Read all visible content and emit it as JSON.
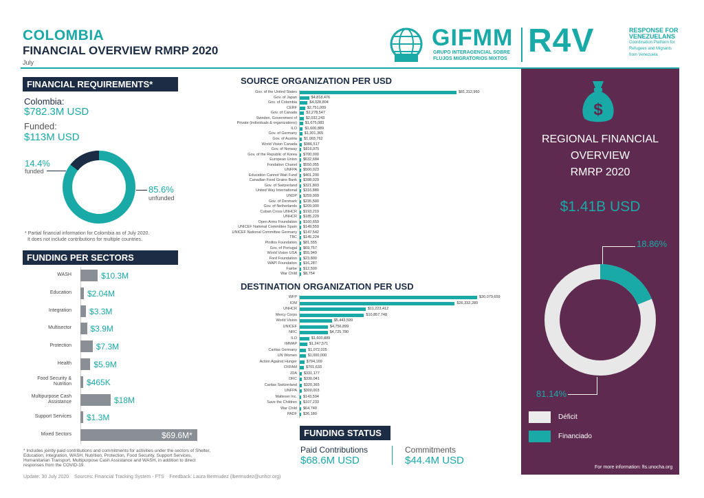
{
  "header": {
    "title": "COLOMBIA",
    "subtitle": "FINANCIAL OVERVIEW RMRP 2020",
    "month": "July",
    "gifmm_logo": "GIFMM",
    "gifmm_sub1": "GRUPO INTERAGENCIAL SOBRE",
    "gifmm_sub2": "FLUJOS MIGRATORIOS MIXTOS",
    "r4v_logo": "R4V",
    "r4v_line1": "RESPONSE FOR",
    "r4v_line2": "VENEZUELANS",
    "r4v_line3": "Coordination Platform for",
    "r4v_line4": "Refugees and Migrants",
    "r4v_line5": "from Venezuela"
  },
  "financial": {
    "heading": "FINANCIAL REQUIREMENTS*",
    "country_label": "Colombia:",
    "requirement": "$782.3M USD",
    "funded_label": "Funded:",
    "funded_value": "$113M USD",
    "funded_pct": "14.4%",
    "funded_word": "funded",
    "unfunded_pct": "85.6%",
    "unfunded_word": "unfunded",
    "funded_fraction": 0.144,
    "note1": "* Partial financial information for Colombia as of July 2020.",
    "note2": "It does not include contributions for multiple countries."
  },
  "sectors": {
    "heading": "FUNDING PER SECTORS",
    "items": [
      {
        "label": "WASH",
        "value": "$10.3M",
        "amount": 10.3
      },
      {
        "label": "Education",
        "value": "$2.04M",
        "amount": 2.04
      },
      {
        "label": "Integration",
        "value": "$3.3M",
        "amount": 3.3
      },
      {
        "label": "Multisector",
        "value": "$3.9M",
        "amount": 3.9
      },
      {
        "label": "Protection",
        "value": "$7.3M",
        "amount": 7.3
      },
      {
        "label": "Health",
        "value": "$5.9M",
        "amount": 5.9
      },
      {
        "label": "Food Security & Nutrition",
        "value": "$465K",
        "amount": 0.465
      },
      {
        "label": "Multipurpose Cash Assistance",
        "value": "$18M",
        "amount": 18
      },
      {
        "label": "Support Services",
        "value": "$1.3M",
        "amount": 1.3
      },
      {
        "label": "Mixed Sectors",
        "value": "$69.6M*",
        "amount": 69.6
      }
    ],
    "note": "* Includes jointly paid contributions and commitments for activities under the sectors of Shelter, Education, Integration, WASH, Nutrition, Protection, Food Security, Support Services, Humanitarian Transport, Multipurpose Cash Assistance and WASH, in addition to direct responses from the COVID-19."
  },
  "source": {
    "heading": "SOURCE ORGANIZATION PER USD",
    "items": [
      {
        "label": "Gov. of the United States",
        "value": "$81,312,960",
        "amount": 81.3
      },
      {
        "label": "Gov. of Japan",
        "value": "$4,818,476",
        "amount": 4.82
      },
      {
        "label": "Gov. of Colombia",
        "value": "$4,028,804",
        "amount": 4.03
      },
      {
        "label": "CERF",
        "value": "$2,751,009",
        "amount": 2.75
      },
      {
        "label": "Gov. of Canada",
        "value": "$2,278,547",
        "amount": 2.28
      },
      {
        "label": "Sweden, Government of",
        "value": "$2,032,243",
        "amount": 2.03
      },
      {
        "label": "Private (individuals & organizations)",
        "value": "$1,675,083",
        "amount": 1.68
      },
      {
        "label": "ILO",
        "value": "$1,600,889",
        "amount": 1.6
      },
      {
        "label": "Gov. of Germany",
        "value": "$1,301,365",
        "amount": 1.3
      },
      {
        "label": "Gov. of Austria",
        "value": "$1,093,762",
        "amount": 1.09
      },
      {
        "label": "World Vision Canada",
        "value": "$986,517",
        "amount": 0.99
      },
      {
        "label": "Gov. of Norway",
        "value": "$816,975",
        "amount": 0.82
      },
      {
        "label": "Gov. of the Republic of Korea",
        "value": "$700,000",
        "amount": 0.7
      },
      {
        "label": "European Union",
        "value": "$632,684",
        "amount": 0.63
      },
      {
        "label": "Fondation Chanel",
        "value": "$550,055",
        "amount": 0.55
      },
      {
        "label": "UNFPA",
        "value": "$500,023",
        "amount": 0.5
      },
      {
        "label": "Education Cannot Wait Fund",
        "value": "$401,200",
        "amount": 0.4
      },
      {
        "label": "Canadian Food Grains Bank",
        "value": "$398,029",
        "amount": 0.4
      },
      {
        "label": "Gov. of Switzerland",
        "value": "$321,803",
        "amount": 0.32
      },
      {
        "label": "United Way International",
        "value": "$316,880",
        "amount": 0.32
      },
      {
        "label": "UNDP",
        "value": "$259,009",
        "amount": 0.26
      },
      {
        "label": "Gov. of Denmark",
        "value": "$235,500",
        "amount": 0.24
      },
      {
        "label": "Gov. of Netherlands",
        "value": "$209,000",
        "amount": 0.21
      },
      {
        "label": "Cuban Cross UNHCR",
        "value": "$193,219",
        "amount": 0.19
      },
      {
        "label": "UNHCR",
        "value": "$185,229",
        "amount": 0.19
      },
      {
        "label": "Open Arms Foundation",
        "value": "$160,659",
        "amount": 0.16
      },
      {
        "label": "UNICEF National Committee Spain",
        "value": "$149,559",
        "amount": 0.15
      },
      {
        "label": "UNICEF National Committee Germany",
        "value": "$147,542",
        "amount": 0.15
      },
      {
        "label": "TBC",
        "value": "$145,224",
        "amount": 0.15
      },
      {
        "label": "Pinillos Foundation",
        "value": "$81,555",
        "amount": 0.08
      },
      {
        "label": "Gov. of Portugal",
        "value": "$69,757",
        "amount": 0.07
      },
      {
        "label": "World Vision USA",
        "value": "$55,949",
        "amount": 0.06
      },
      {
        "label": "Ford Foundation",
        "value": "$23,800",
        "amount": 0.02
      },
      {
        "label": "WAPI Foundation",
        "value": "$16,287",
        "amount": 0.02
      },
      {
        "label": "Fairbe",
        "value": "$12,500",
        "amount": 0.01
      },
      {
        "label": "War Child",
        "value": "$8,754",
        "amount": 0.01
      }
    ]
  },
  "destination": {
    "heading": "DESTINATION ORGANIZATION PER USD",
    "items": [
      {
        "label": "WFP",
        "value": "$30,079,659",
        "amount": 30.1
      },
      {
        "label": "IOM",
        "value": "$26,332,280",
        "amount": 26.3
      },
      {
        "label": "UNHCR",
        "value": "$11,223,412",
        "amount": 11.2
      },
      {
        "label": "Mercy Corps",
        "value": "$10,857,748",
        "amount": 10.9
      },
      {
        "label": "World Vision",
        "value": "$5,443,599",
        "amount": 5.44
      },
      {
        "label": "UNICEF",
        "value": "$4,756,899",
        "amount": 4.76
      },
      {
        "label": "NRC",
        "value": "$4,725,780",
        "amount": 4.73
      },
      {
        "label": "ILO",
        "value": "$1,600,889",
        "amount": 1.6
      },
      {
        "label": "IMMAP",
        "value": "$1,247,571",
        "amount": 1.25
      },
      {
        "label": "Caritas Germany",
        "value": "$1,072,025",
        "amount": 1.07
      },
      {
        "label": "UN Women",
        "value": "$1,000,000",
        "amount": 1.0
      },
      {
        "label": "Action Against Hunger",
        "value": "$794,169",
        "amount": 0.79
      },
      {
        "label": "OXFAM",
        "value": "$701,633",
        "amount": 0.7
      },
      {
        "label": "JDA",
        "value": "$331,177",
        "amount": 0.33
      },
      {
        "label": "DRC",
        "value": "$330,041",
        "amount": 0.33
      },
      {
        "label": "Caritas Switzerland",
        "value": "$320,365",
        "amount": 0.32
      },
      {
        "label": "UNFPA",
        "value": "$300,003",
        "amount": 0.3
      },
      {
        "label": "Malteser Inc.",
        "value": "$143,594",
        "amount": 0.14
      },
      {
        "label": "Save the Children",
        "value": "$107,233",
        "amount": 0.11
      },
      {
        "label": "War Child",
        "value": "$64,740",
        "amount": 0.06
      },
      {
        "label": "PADF",
        "value": "$36,180",
        "amount": 0.04
      }
    ]
  },
  "funding_status": {
    "heading": "FUNDING STATUS",
    "paid_label": "Paid Contributions",
    "paid_value": "$68.6M USD",
    "commit_label": "Commitments",
    "commit_value": "$44.4M USD"
  },
  "regional": {
    "title1": "REGIONAL FINANCIAL",
    "title2": "OVERVIEW",
    "title3": "RMRP 2020",
    "amount": "$1.41B USD",
    "financed_pct": "18.86%",
    "deficit_pct": "81.14%",
    "financed_fraction": 0.1886,
    "legend_deficit": "Déficit",
    "legend_financed": "Financiado",
    "more_info": "For more information: fts.unocha.org",
    "money_icon": "money-bag-icon"
  },
  "footer": {
    "text": "Update: 30 July 2020    Sources: Financial Tracking System - FTS    Feedback: Laura Bermudez (lbermudez@unhcr.org)"
  },
  "colors": {
    "teal": "#19a9a6",
    "navy": "#1c2c44",
    "plum": "#5e2a4f",
    "grey_bar": "#8a8f96"
  }
}
